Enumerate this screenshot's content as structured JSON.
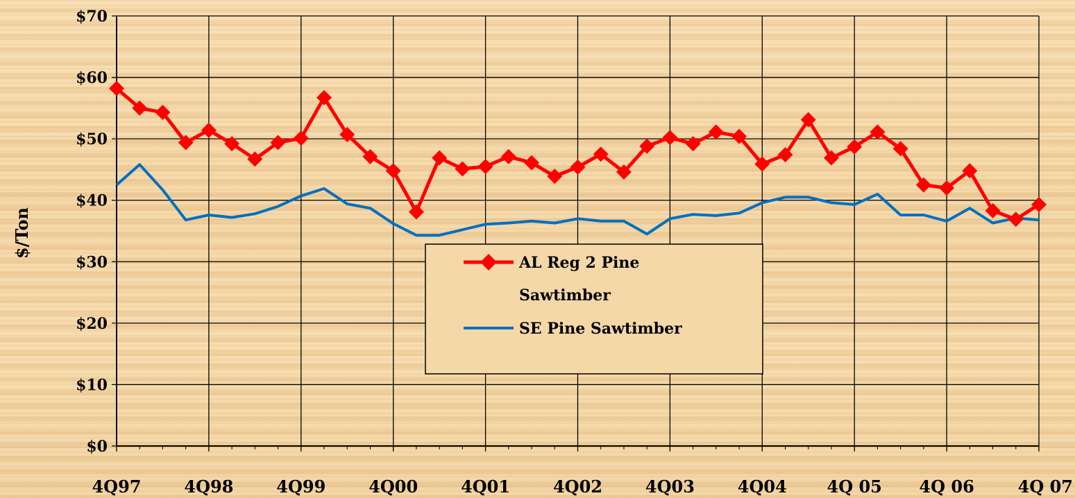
{
  "chart_data": {
    "type": "line",
    "title": "",
    "xlabel": "",
    "ylabel": "$/Ton",
    "ylim": [
      0,
      70
    ],
    "y_ticks": [
      "$0",
      "$10",
      "$20",
      "$30",
      "$40",
      "$50",
      "$60",
      "$70"
    ],
    "x_ticks": [
      "4Q97",
      "4Q98",
      "4Q99",
      "4Q00",
      "4Q01",
      "4Q02",
      "4Q03",
      "4Q04",
      "4Q 05",
      "4Q 06",
      "4Q 07"
    ],
    "grid": true,
    "legend_position": "center",
    "x_unit": "quarter",
    "x_start": "4Q97",
    "series": [
      {
        "name": "AL Reg 2 Pine Sawtimber",
        "color": "#ff0000",
        "marker": "diamond",
        "values": [
          58.2,
          55.0,
          54.3,
          49.4,
          51.4,
          49.2,
          46.7,
          49.4,
          50.1,
          56.7,
          50.7,
          47.1,
          44.8,
          38.1,
          46.9,
          45.1,
          45.5,
          47.1,
          46.1,
          43.9,
          45.4,
          47.5,
          44.6,
          48.8,
          50.2,
          49.2,
          51.1,
          50.4,
          45.9,
          47.4,
          53.1,
          46.9,
          48.7,
          51.1,
          48.4,
          42.5,
          42.0,
          44.8,
          38.3,
          36.9,
          39.3
        ]
      },
      {
        "name": "SE Pine Sawtimber",
        "color": "#0070c0",
        "marker": "none",
        "values": [
          42.5,
          45.8,
          41.7,
          36.8,
          37.6,
          37.2,
          37.8,
          39.0,
          40.7,
          41.9,
          39.4,
          38.7,
          36.2,
          34.3,
          34.3,
          35.2,
          36.1,
          36.3,
          36.6,
          36.3,
          37.0,
          36.6,
          36.6,
          34.5,
          37.0,
          37.7,
          37.5,
          37.9,
          39.6,
          40.5,
          40.5,
          39.6,
          39.3,
          41.0,
          37.6,
          37.6,
          36.6,
          38.7,
          36.3,
          37.1,
          36.8
        ]
      }
    ]
  }
}
